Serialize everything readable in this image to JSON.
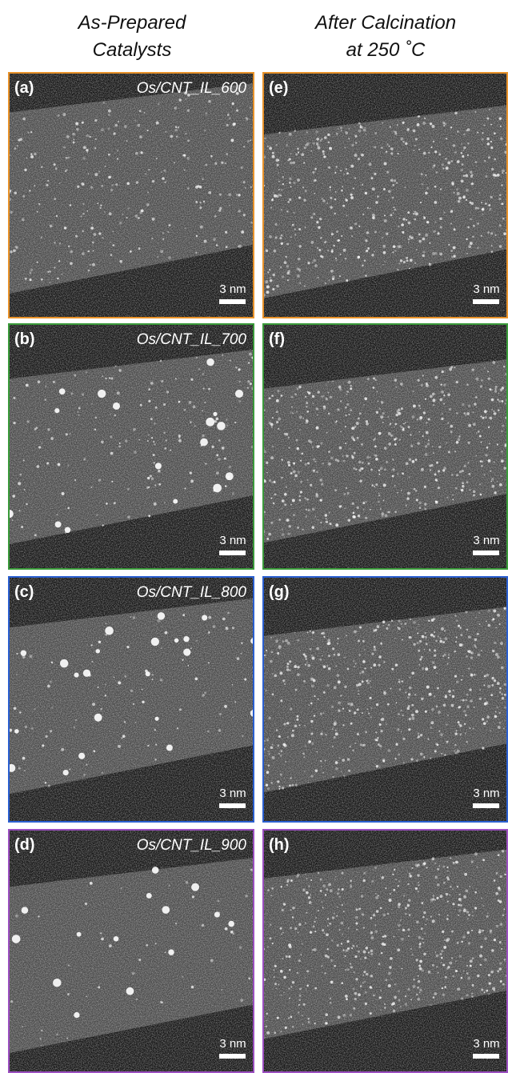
{
  "headers": [
    {
      "lines": [
        "As-Prepared",
        "Catalysts"
      ]
    },
    {
      "lines": [
        "After Calcination",
        "at 250 ˚C"
      ]
    }
  ],
  "rows": [
    {
      "left": {
        "label": "(a)",
        "sample": "Os/CNT_IL_600",
        "scale_bar": "3 nm"
      },
      "right": {
        "label": "(e)",
        "scale_bar": "3 nm"
      }
    },
    {
      "left": {
        "label": "(b)",
        "sample": "Os/CNT_IL_700",
        "scale_bar": "3 nm"
      },
      "right": {
        "label": "(f)",
        "scale_bar": "3 nm"
      }
    },
    {
      "left": {
        "label": "(c)",
        "sample": "Os/CNT_IL_800",
        "scale_bar": "3 nm"
      },
      "right": {
        "label": "(g)",
        "scale_bar": "3 nm"
      }
    },
    {
      "left": {
        "label": "(d)",
        "sample": "Os/CNT_IL_900",
        "scale_bar": "3 nm"
      },
      "right": {
        "label": "(h)",
        "scale_bar": "3 nm"
      }
    }
  ]
}
